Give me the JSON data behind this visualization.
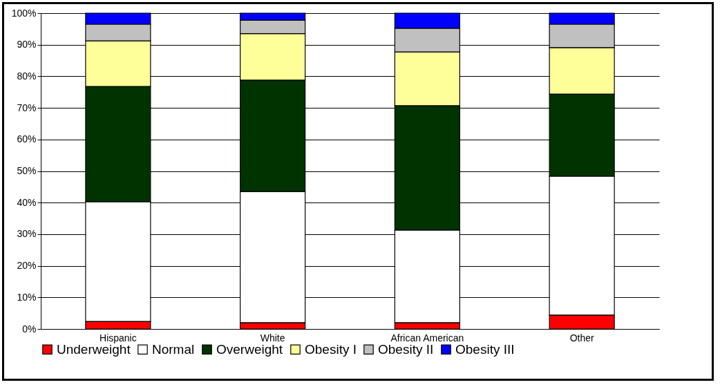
{
  "chart_data": {
    "type": "bar",
    "stacked": true,
    "categories": [
      "Hispanic",
      "White",
      "African American",
      "Other"
    ],
    "series": [
      {
        "name": "Underweight",
        "color": "#ff0000",
        "values": [
          2.4,
          2.0,
          2.0,
          4.4
        ]
      },
      {
        "name": "Normal",
        "color": "#ffffff",
        "values": [
          37.9,
          41.5,
          29.3,
          44.0
        ]
      },
      {
        "name": "Overweight",
        "color": "#003300",
        "values": [
          36.5,
          35.3,
          39.4,
          26.0
        ]
      },
      {
        "name": "Obesity I",
        "color": "#ffff99",
        "values": [
          14.4,
          14.7,
          17.0,
          14.7
        ]
      },
      {
        "name": "Obesity II",
        "color": "#c0c0c0",
        "values": [
          5.3,
          4.3,
          7.5,
          7.4
        ]
      },
      {
        "name": "Obesity III",
        "color": "#0000ff",
        "values": [
          3.5,
          2.2,
          4.8,
          3.5
        ]
      }
    ],
    "ylim": [
      0,
      100
    ],
    "yticks": [
      {
        "value": 0,
        "label": "0%"
      },
      {
        "value": 10,
        "label": "10%"
      },
      {
        "value": 20,
        "label": "20%"
      },
      {
        "value": 30,
        "label": "30%"
      },
      {
        "value": 40,
        "label": "40%"
      },
      {
        "value": 50,
        "label": "50%"
      },
      {
        "value": 60,
        "label": "60%"
      },
      {
        "value": 70,
        "label": "70%"
      },
      {
        "value": 80,
        "label": "80%"
      },
      {
        "value": 90,
        "label": "90%"
      },
      {
        "value": 100,
        "label": "100%"
      }
    ],
    "grid": "y",
    "legend": "bottom"
  }
}
